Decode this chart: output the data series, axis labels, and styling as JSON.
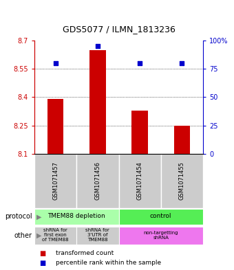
{
  "title": "GDS5077 / ILMN_1813236",
  "samples": [
    "GSM1071457",
    "GSM1071456",
    "GSM1071454",
    "GSM1071455"
  ],
  "bar_values": [
    8.39,
    8.65,
    8.33,
    8.25
  ],
  "bar_base": 8.1,
  "percentile_values": [
    80,
    95,
    80,
    80
  ],
  "percentile_scale_max": 100,
  "ylim_left": [
    8.1,
    8.7
  ],
  "ylim_right": [
    0,
    100
  ],
  "yticks_left": [
    8.1,
    8.25,
    8.4,
    8.55,
    8.7
  ],
  "ytick_labels_left": [
    "8.1",
    "8.25",
    "8.4",
    "8.55",
    "8.7"
  ],
  "yticks_right": [
    0,
    25,
    50,
    75,
    100
  ],
  "ytick_labels_right": [
    "0",
    "25",
    "50",
    "75",
    "100%"
  ],
  "grid_yticks": [
    8.25,
    8.4,
    8.55
  ],
  "bar_color": "#cc0000",
  "dot_color": "#0000cc",
  "bar_width": 0.38,
  "dot_size": 25,
  "protocol_labels": [
    "TMEM88 depletion",
    "control"
  ],
  "protocol_colors": [
    "#aaffaa",
    "#55ee55"
  ],
  "other_labels": [
    "shRNA for\nfirst exon\nof TMEM88",
    "shRNA for\n3'UTR of\nTMEM88",
    "non-targetting\nshRNA"
  ],
  "other_colors": [
    "#cccccc",
    "#cccccc",
    "#ee77ee"
  ],
  "sample_bg_color": "#cccccc",
  "left_axis_color": "#cc0000",
  "right_axis_color": "#0000cc",
  "legend_bar_color": "#cc0000",
  "legend_dot_color": "#0000cc"
}
